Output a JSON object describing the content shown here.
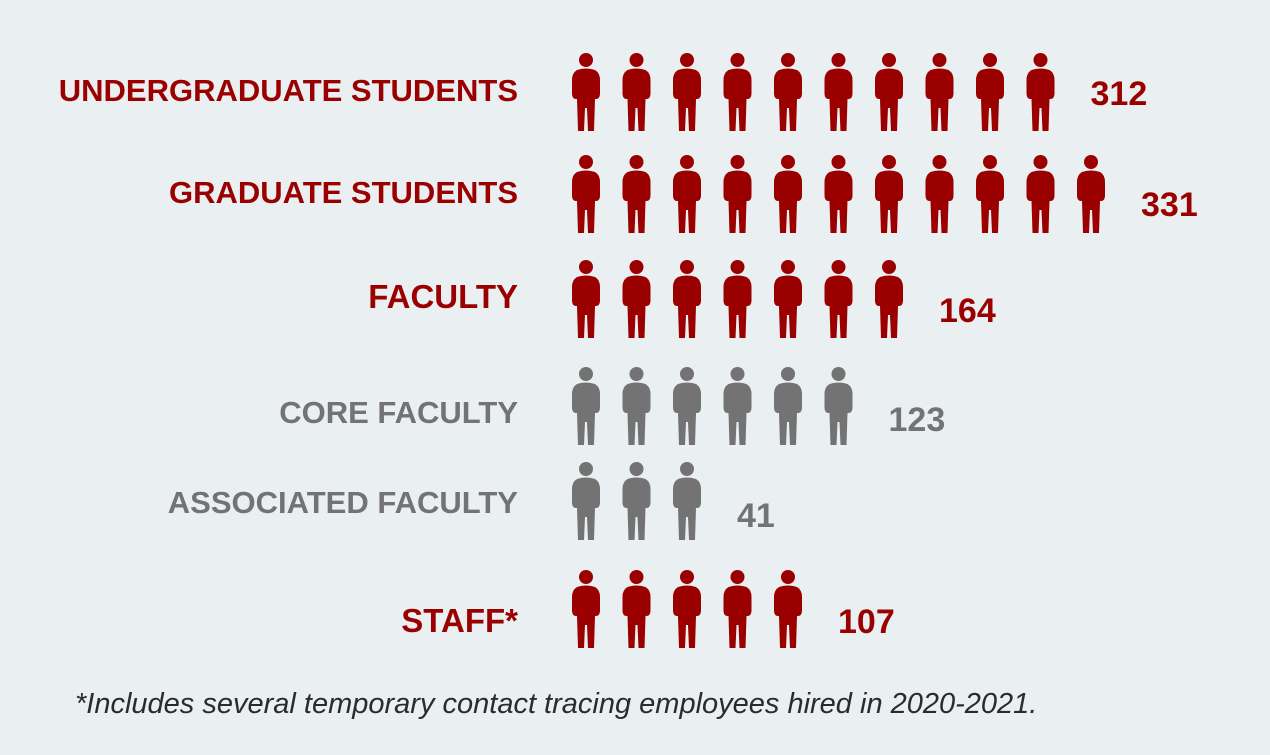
{
  "colors": {
    "primary": "#9b0000",
    "secondary": "#737373",
    "background": "#eaeff2"
  },
  "icon": "person-icon",
  "chart_data": {
    "type": "pictograph",
    "categories": [
      "UNDERGRADUATE STUDENTS",
      "GRADUATE STUDENTS",
      "FACULTY",
      "CORE FACULTY",
      "ASSOCIATED FACULTY",
      "STAFF*"
    ],
    "values": [
      312,
      331,
      164,
      123,
      41,
      107
    ],
    "icon_counts": [
      10,
      11,
      7,
      6,
      3,
      5
    ],
    "style": [
      "primary",
      "primary",
      "primary",
      "secondary",
      "secondary",
      "primary"
    ]
  },
  "footnote": "*Includes several temporary contact tracing employees hired in 2020-2021."
}
